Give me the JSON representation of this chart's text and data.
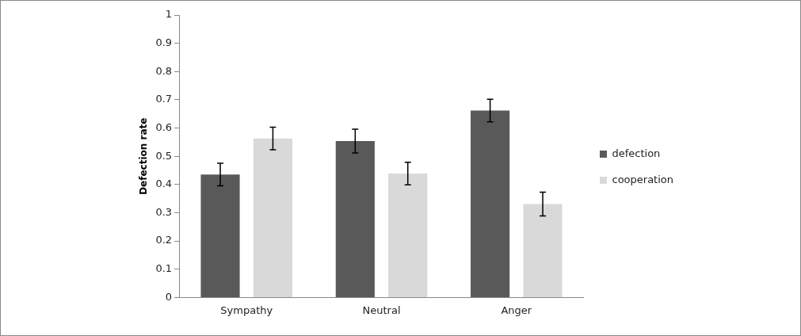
{
  "chart_data": {
    "type": "bar",
    "ylabel": "Defection rate",
    "categories": [
      "Sympathy",
      "Neutral",
      "Anger"
    ],
    "series": [
      {
        "name": "defection",
        "color": "#595959",
        "values": [
          0.435,
          0.554,
          0.662
        ],
        "errors": [
          0.04,
          0.042,
          0.04
        ]
      },
      {
        "name": "cooperation",
        "color": "#d9d9d9",
        "values": [
          0.563,
          0.439,
          0.331
        ],
        "errors": [
          0.04,
          0.04,
          0.042
        ]
      }
    ],
    "ylim": [
      0,
      1
    ],
    "yticks": [
      0,
      0.1,
      0.2,
      0.3,
      0.4,
      0.5,
      0.6,
      0.7,
      0.8,
      0.9,
      1
    ],
    "grid": false,
    "legend": "right"
  }
}
